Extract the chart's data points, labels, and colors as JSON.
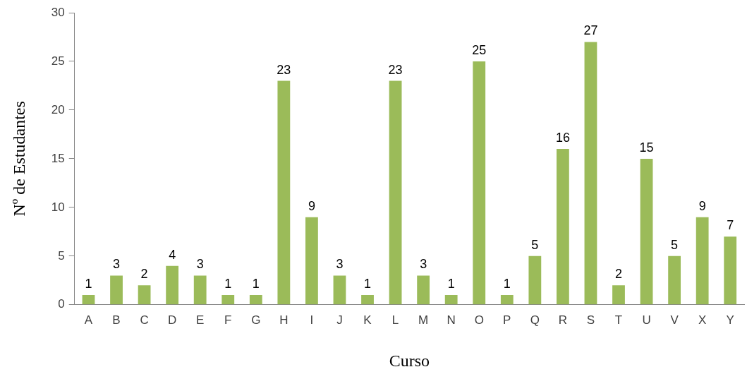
{
  "chart_data": {
    "type": "bar",
    "xlabel": "Curso",
    "ylabel": "Nº de Estudantes",
    "categories": [
      "A",
      "B",
      "C",
      "D",
      "E",
      "F",
      "G",
      "H",
      "I",
      "J",
      "K",
      "L",
      "M",
      "N",
      "O",
      "P",
      "Q",
      "R",
      "S",
      "T",
      "U",
      "V",
      "X",
      "Y"
    ],
    "values": [
      1,
      3,
      2,
      4,
      3,
      1,
      1,
      23,
      9,
      3,
      1,
      23,
      3,
      1,
      25,
      1,
      5,
      16,
      27,
      2,
      15,
      5,
      9,
      7
    ],
    "color": "#9bbb59",
    "ylim": [
      0,
      30
    ],
    "yticks": [
      0,
      5,
      10,
      15,
      20,
      25,
      30
    ],
    "grid": false,
    "legend": false,
    "data_labels": true
  }
}
